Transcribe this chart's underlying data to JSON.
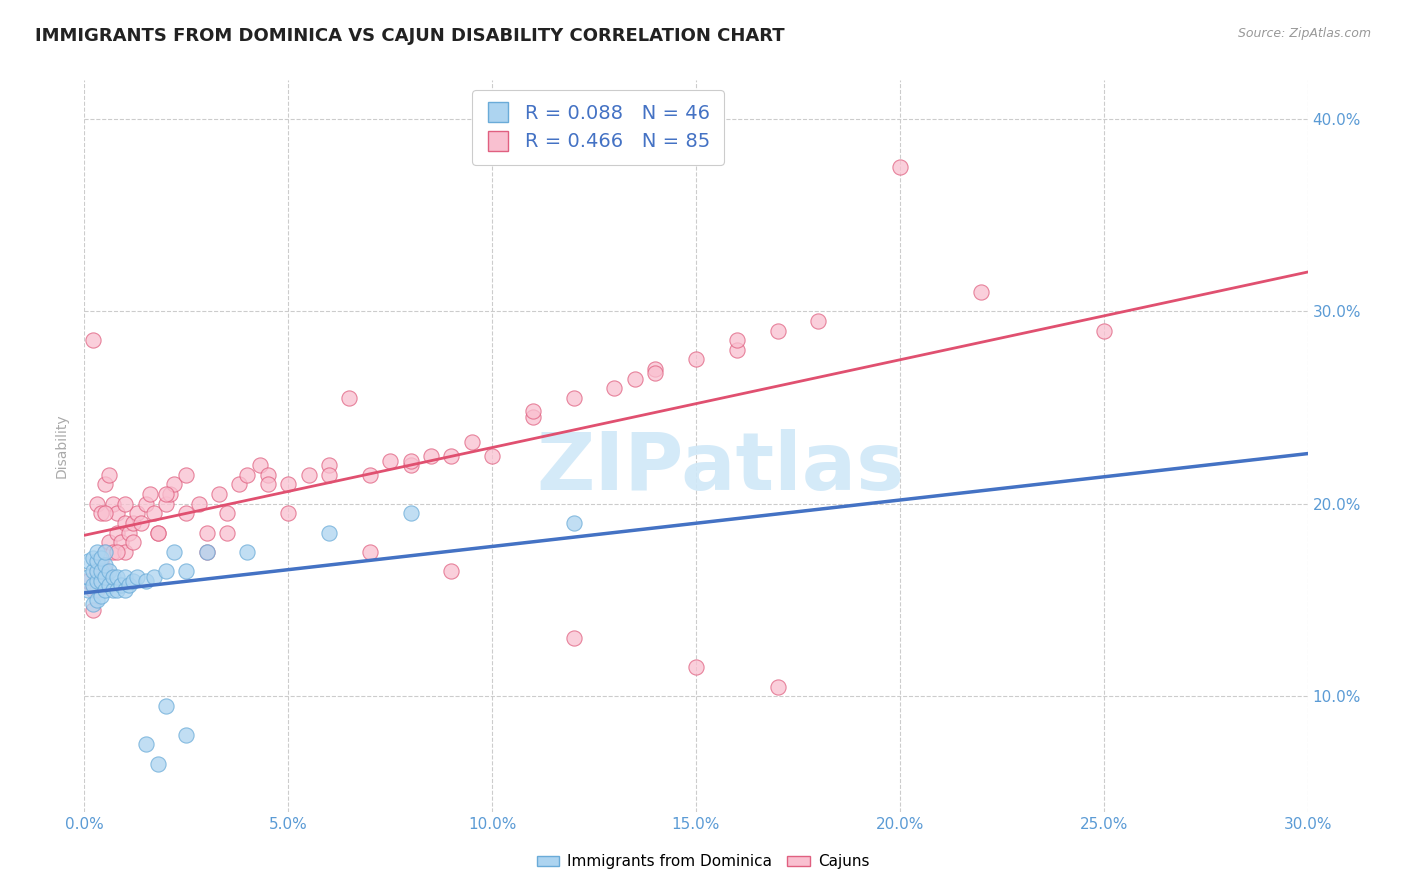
{
  "title": "IMMIGRANTS FROM DOMINICA VS CAJUN DISABILITY CORRELATION CHART",
  "source": "Source: ZipAtlas.com",
  "ylabel": "Disability",
  "xlim": [
    0.0,
    0.3
  ],
  "ylim": [
    0.04,
    0.42
  ],
  "ytick_values": [
    0.1,
    0.2,
    0.3,
    0.4
  ],
  "xtick_values": [
    0.0,
    0.05,
    0.1,
    0.15,
    0.2,
    0.25,
    0.3
  ],
  "series1_name": "Immigrants from Dominica",
  "series1_color": "#add4f0",
  "series1_edge_color": "#6aabd8",
  "series1_R": 0.088,
  "series1_N": 46,
  "series1_line_color": "#4472c4",
  "series2_name": "Cajuns",
  "series2_color": "#f9c0d0",
  "series2_edge_color": "#e06080",
  "series2_R": 0.466,
  "series2_N": 85,
  "series2_line_color": "#e05070",
  "background_color": "#ffffff",
  "grid_color": "#cccccc",
  "title_color": "#222222",
  "axis_label_color": "#5b9bd5",
  "legend_R_color": "#4472c4",
  "watermark_color": "#d0e8f8",
  "s1_x": [
    0.001,
    0.001,
    0.001,
    0.002,
    0.002,
    0.002,
    0.002,
    0.003,
    0.003,
    0.003,
    0.003,
    0.003,
    0.004,
    0.004,
    0.004,
    0.004,
    0.005,
    0.005,
    0.005,
    0.005,
    0.006,
    0.006,
    0.007,
    0.007,
    0.008,
    0.008,
    0.009,
    0.01,
    0.01,
    0.011,
    0.012,
    0.013,
    0.015,
    0.017,
    0.02,
    0.022,
    0.025,
    0.03,
    0.04,
    0.06,
    0.08,
    0.12,
    0.02,
    0.025,
    0.015,
    0.018
  ],
  "s1_y": [
    0.155,
    0.162,
    0.17,
    0.148,
    0.158,
    0.165,
    0.172,
    0.15,
    0.16,
    0.165,
    0.17,
    0.175,
    0.152,
    0.16,
    0.165,
    0.172,
    0.155,
    0.162,
    0.168,
    0.175,
    0.158,
    0.165,
    0.155,
    0.162,
    0.155,
    0.162,
    0.158,
    0.155,
    0.162,
    0.158,
    0.16,
    0.162,
    0.16,
    0.162,
    0.165,
    0.175,
    0.165,
    0.175,
    0.175,
    0.185,
    0.195,
    0.19,
    0.095,
    0.08,
    0.075,
    0.065
  ],
  "s2_x": [
    0.001,
    0.002,
    0.002,
    0.003,
    0.003,
    0.004,
    0.004,
    0.005,
    0.005,
    0.006,
    0.006,
    0.007,
    0.007,
    0.008,
    0.008,
    0.009,
    0.01,
    0.01,
    0.011,
    0.012,
    0.013,
    0.014,
    0.015,
    0.016,
    0.017,
    0.018,
    0.02,
    0.021,
    0.022,
    0.025,
    0.028,
    0.03,
    0.033,
    0.035,
    0.038,
    0.04,
    0.043,
    0.045,
    0.05,
    0.055,
    0.06,
    0.065,
    0.07,
    0.075,
    0.08,
    0.085,
    0.09,
    0.095,
    0.1,
    0.11,
    0.12,
    0.13,
    0.135,
    0.14,
    0.15,
    0.16,
    0.17,
    0.002,
    0.003,
    0.005,
    0.008,
    0.012,
    0.018,
    0.025,
    0.035,
    0.05,
    0.07,
    0.09,
    0.12,
    0.15,
    0.17,
    0.005,
    0.01,
    0.02,
    0.03,
    0.045,
    0.06,
    0.08,
    0.11,
    0.14,
    0.16,
    0.18,
    0.2,
    0.22,
    0.25
  ],
  "s2_y": [
    0.16,
    0.285,
    0.155,
    0.2,
    0.165,
    0.195,
    0.17,
    0.21,
    0.175,
    0.215,
    0.18,
    0.2,
    0.175,
    0.195,
    0.185,
    0.18,
    0.175,
    0.19,
    0.185,
    0.19,
    0.195,
    0.19,
    0.2,
    0.205,
    0.195,
    0.185,
    0.2,
    0.205,
    0.21,
    0.215,
    0.2,
    0.175,
    0.205,
    0.195,
    0.21,
    0.215,
    0.22,
    0.215,
    0.21,
    0.215,
    0.22,
    0.255,
    0.215,
    0.222,
    0.22,
    0.225,
    0.225,
    0.232,
    0.225,
    0.245,
    0.255,
    0.26,
    0.265,
    0.27,
    0.275,
    0.28,
    0.29,
    0.145,
    0.155,
    0.165,
    0.175,
    0.18,
    0.185,
    0.195,
    0.185,
    0.195,
    0.175,
    0.165,
    0.13,
    0.115,
    0.105,
    0.195,
    0.2,
    0.205,
    0.185,
    0.21,
    0.215,
    0.222,
    0.248,
    0.268,
    0.285,
    0.295,
    0.375,
    0.31,
    0.29
  ]
}
